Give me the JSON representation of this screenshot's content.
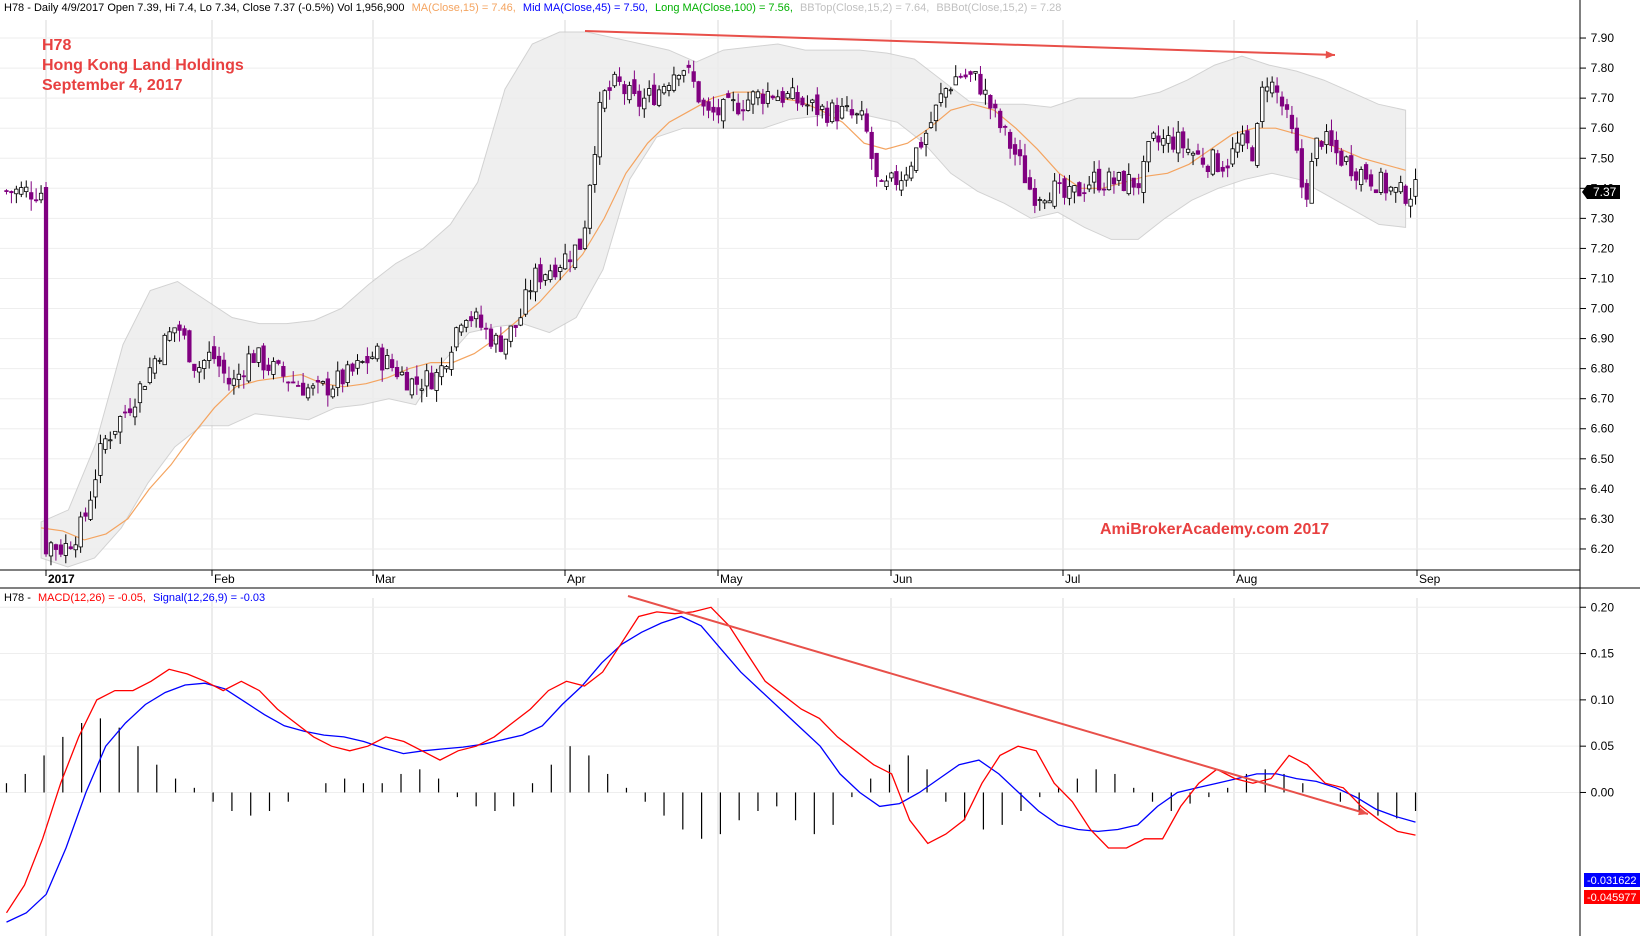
{
  "price_header": {
    "lead": "H78 - Daily 4/9/2017 Open 7.39, Hi 7.4, Lo 7.34, Close 7.37 (-0.5%) Vol 1,956,900",
    "ma": "MA(Close,15) = 7.46,",
    "mid_ma": "Mid MA(Close,45) = 7.50,",
    "long_ma": "Long MA(Close,100) = 7.56,",
    "bbtop": "BBTop(Close,15,2) = 7.64,",
    "bbbot": "BBBot(Close,15,2) = 7.28"
  },
  "watermark": {
    "ticker": "H78",
    "company": "Hong Kong Land Holdings",
    "date": "September 4, 2017",
    "site": "AmiBrokerAcademy.com  2017"
  },
  "macd_header": {
    "lead": "H78 -",
    "macd": "MACD(12,26) = -0.05,",
    "signal": "Signal(12,26,9) = -0.03"
  },
  "last_price_tag": "7.37",
  "macd_tags": {
    "signal": "-0.031622",
    "macd": "-0.045977"
  },
  "colors": {
    "up": "#ffffff",
    "down": "#800080",
    "ma15": "#f4a460",
    "macd": "#ff0000",
    "signal": "#0000ff",
    "trend": "#e8504a",
    "title": "#e84040",
    "band": "#ececec"
  },
  "chart_data": [
    {
      "type": "candlestick",
      "title": "H78 Hong Kong Land Holdings",
      "y_ticks": [
        "7.90",
        "7.80",
        "7.70",
        "7.60",
        "7.50",
        "7.40",
        "7.30",
        "7.20",
        "7.10",
        "7.00",
        "6.90",
        "6.80",
        "6.70",
        "6.60",
        "6.50",
        "6.40",
        "6.30",
        "6.20"
      ],
      "ylim": [
        6.13,
        7.96
      ],
      "x_labels": [
        "2017",
        "Feb",
        "Mar",
        "Apr",
        "May",
        "Jun",
        "Jul",
        "Aug",
        "Sep"
      ],
      "anchors": [
        [
          7.52,
          6.19
        ],
        [
          9,
          6.22
        ],
        [
          12,
          6.2
        ],
        [
          16,
          6.28
        ],
        [
          20,
          6.55
        ],
        [
          25,
          6.67
        ],
        [
          28,
          6.75
        ],
        [
          31,
          6.85
        ],
        [
          35,
          6.95
        ],
        [
          39,
          6.8
        ],
        [
          42,
          6.85
        ],
        [
          46,
          6.74
        ],
        [
          50,
          6.85
        ],
        [
          56,
          6.78
        ],
        [
          63,
          6.72
        ],
        [
          70,
          6.78
        ],
        [
          75,
          6.85
        ],
        [
          79,
          6.8
        ],
        [
          83,
          6.75
        ],
        [
          88,
          6.78
        ],
        [
          93,
          7.0
        ],
        [
          100,
          6.88
        ],
        [
          104,
          6.95
        ],
        [
          107,
          7.1
        ],
        [
          112,
          7.15
        ],
        [
          117,
          7.22
        ],
        [
          119,
          7.5
        ],
        [
          121,
          7.7
        ],
        [
          124,
          7.75
        ],
        [
          128,
          7.68
        ],
        [
          132,
          7.72
        ],
        [
          137,
          7.82
        ],
        [
          140,
          7.73
        ],
        [
          142,
          7.64
        ],
        [
          146,
          7.66
        ],
        [
          151,
          7.7
        ],
        [
          155,
          7.72
        ],
        [
          159,
          7.7
        ],
        [
          165,
          7.66
        ],
        [
          170,
          7.65
        ],
        [
          174,
          7.62
        ],
        [
          177,
          7.38
        ],
        [
          182,
          7.45
        ],
        [
          187,
          7.6
        ],
        [
          190,
          7.72
        ],
        [
          193,
          7.78
        ],
        [
          197,
          7.76
        ],
        [
          201,
          7.62
        ],
        [
          205,
          7.5
        ],
        [
          208,
          7.38
        ],
        [
          212,
          7.4
        ],
        [
          215,
          7.36
        ],
        [
          220,
          7.43
        ],
        [
          225,
          7.42
        ],
        [
          230,
          7.42
        ],
        [
          232,
          7.55
        ],
        [
          237,
          7.56
        ],
        [
          242,
          7.5
        ],
        [
          247,
          7.48
        ],
        [
          250,
          7.55
        ],
        [
          253,
          7.52
        ],
        [
          255,
          7.78
        ],
        [
          258,
          7.7
        ],
        [
          261,
          7.55
        ],
        [
          263,
          7.36
        ],
        [
          266,
          7.58
        ],
        [
          269,
          7.52
        ],
        [
          273,
          7.47
        ],
        [
          277,
          7.43
        ],
        [
          282,
          7.38
        ],
        [
          285,
          7.39
        ]
      ],
      "ma15": [
        6.27,
        6.26,
        6.23,
        6.25,
        6.3,
        6.4,
        6.48,
        6.58,
        6.67,
        6.74,
        6.76,
        6.77,
        6.78,
        6.75,
        6.74,
        6.75,
        6.77,
        6.8,
        6.82,
        6.82,
        6.85,
        6.9,
        6.96,
        7.02,
        7.1,
        7.18,
        7.3,
        7.45,
        7.55,
        7.62,
        7.66,
        7.7,
        7.72,
        7.72,
        7.7,
        7.69,
        7.66,
        7.62,
        7.55,
        7.53,
        7.55,
        7.6,
        7.66,
        7.68,
        7.66,
        7.6,
        7.53,
        7.45,
        7.4,
        7.4,
        7.42,
        7.44,
        7.45,
        7.48,
        7.53,
        7.58,
        7.6,
        7.6,
        7.58,
        7.56,
        7.53,
        7.5,
        7.48,
        7.46
      ],
      "bb_top": [
        6.29,
        6.33,
        6.55,
        6.88,
        7.06,
        7.09,
        7.03,
        6.97,
        6.95,
        6.95,
        6.96,
        7.0,
        7.08,
        7.15,
        7.2,
        7.28,
        7.42,
        7.73,
        7.88,
        7.92,
        7.92,
        7.9,
        7.88,
        7.86,
        7.82,
        7.86,
        7.87,
        7.88,
        7.86,
        7.86,
        7.86,
        7.85,
        7.83,
        7.76,
        7.69,
        7.68,
        7.68,
        7.67,
        7.7,
        7.7,
        7.7,
        7.72,
        7.76,
        7.81,
        7.84,
        7.81,
        7.79,
        7.76,
        7.72,
        7.68,
        7.66
      ],
      "bb_bottom": [
        6.17,
        6.14,
        6.17,
        6.27,
        6.42,
        6.54,
        6.61,
        6.61,
        6.65,
        6.64,
        6.63,
        6.67,
        6.68,
        6.7,
        6.68,
        6.82,
        6.92,
        6.94,
        6.95,
        6.92,
        6.97,
        7.13,
        7.43,
        7.57,
        7.6,
        7.6,
        7.6,
        7.6,
        7.63,
        7.64,
        7.66,
        7.64,
        7.62,
        7.55,
        7.45,
        7.39,
        7.35,
        7.3,
        7.32,
        7.27,
        7.23,
        7.23,
        7.3,
        7.36,
        7.4,
        7.43,
        7.45,
        7.43,
        7.38,
        7.33,
        7.28,
        7.27
      ]
    },
    {
      "type": "line",
      "title": "MACD(12,26), Signal(12,26,9)",
      "series": [
        {
          "name": "MACD(12,26)",
          "values": [
            -0.13,
            -0.1,
            -0.05,
            0.01,
            0.06,
            0.1,
            0.11,
            0.11,
            0.12,
            0.133,
            0.128,
            0.12,
            0.11,
            0.12,
            0.11,
            0.09,
            0.075,
            0.06,
            0.05,
            0.045,
            0.05,
            0.06,
            0.055,
            0.045,
            0.035,
            0.045,
            0.05,
            0.06,
            0.075,
            0.09,
            0.11,
            0.12,
            0.115,
            0.13,
            0.16,
            0.19,
            0.195,
            0.193,
            0.195,
            0.2,
            0.18,
            0.15,
            0.12,
            0.105,
            0.09,
            0.08,
            0.06,
            0.045,
            0.03,
            0.02,
            -0.03,
            -0.055,
            -0.045,
            -0.03,
            0.01,
            0.04,
            0.05,
            0.045,
            0.01,
            -0.01,
            -0.04,
            -0.06,
            -0.06,
            -0.05,
            -0.05,
            -0.015,
            0.01,
            0.025,
            0.015,
            0.01,
            0.015,
            0.04,
            0.03,
            0.01,
            0.005,
            -0.015,
            -0.03,
            -0.042,
            -0.046
          ]
        },
        {
          "name": "Signal(12,26,9)",
          "values": [
            -0.14,
            -0.13,
            -0.11,
            -0.06,
            0.0,
            0.05,
            0.075,
            0.095,
            0.108,
            0.116,
            0.118,
            0.112,
            0.098,
            0.084,
            0.072,
            0.066,
            0.062,
            0.06,
            0.055,
            0.048,
            0.042,
            0.045,
            0.047,
            0.049,
            0.052,
            0.057,
            0.062,
            0.072,
            0.095,
            0.115,
            0.14,
            0.16,
            0.173,
            0.183,
            0.19,
            0.18,
            0.155,
            0.13,
            0.11,
            0.09,
            0.07,
            0.05,
            0.02,
            0.0,
            -0.015,
            -0.012,
            0.0,
            0.015,
            0.03,
            0.035,
            0.02,
            0.0,
            -0.02,
            -0.035,
            -0.04,
            -0.042,
            -0.04,
            -0.035,
            -0.015,
            0.0,
            0.005,
            0.01,
            0.015,
            0.02,
            0.02,
            0.015,
            0.012,
            0.005,
            -0.005,
            -0.018,
            -0.026,
            -0.032
          ]
        },
        {
          "name": "Histogram",
          "values": [
            0.01,
            0.02,
            0.04,
            0.06,
            0.075,
            0.08,
            0.07,
            0.05,
            0.03,
            0.015,
            0.005,
            -0.01,
            -0.02,
            -0.025,
            -0.02,
            -0.01,
            0.0,
            0.01,
            0.015,
            0.01,
            0.01,
            0.02,
            0.025,
            0.015,
            -0.005,
            -0.015,
            -0.02,
            -0.015,
            0.01,
            0.03,
            0.05,
            0.04,
            0.02,
            0.005,
            -0.01,
            -0.025,
            -0.04,
            -0.05,
            -0.045,
            -0.03,
            -0.02,
            -0.015,
            -0.03,
            -0.045,
            -0.035,
            -0.005,
            0.015,
            0.03,
            0.04,
            0.025,
            -0.01,
            -0.03,
            -0.04,
            -0.035,
            -0.02,
            -0.005,
            0.005,
            0.015,
            0.025,
            0.02,
            0.005,
            -0.01,
            -0.02,
            -0.012,
            -0.005,
            0.005,
            0.02,
            0.025,
            0.02,
            0.01,
            0.0,
            -0.01,
            -0.02,
            -0.025,
            -0.028,
            -0.02
          ]
        }
      ],
      "y_ticks": [
        "0.20",
        "0.15",
        "0.10",
        "0.05",
        "0.00"
      ],
      "ylim": [
        -0.155,
        0.21
      ]
    }
  ]
}
